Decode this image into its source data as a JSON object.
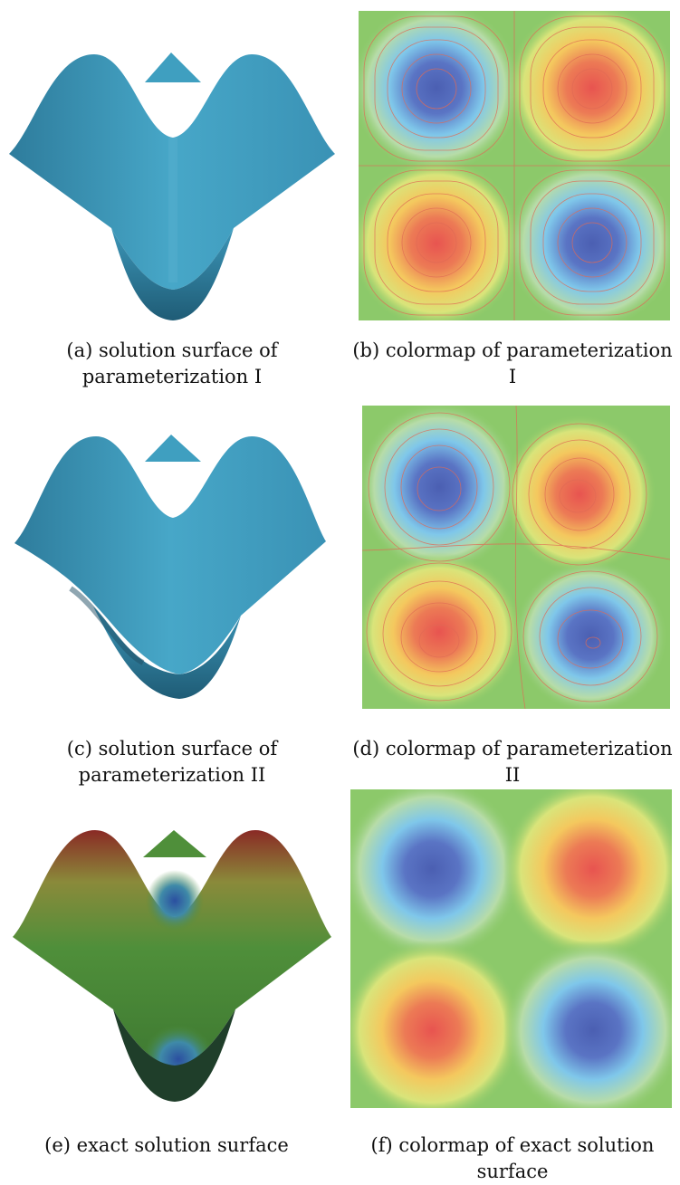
{
  "figure": {
    "panels": [
      {
        "id": "a",
        "caption": "(a) solution surface of parameterization I",
        "kind": "surface-blue"
      },
      {
        "id": "b",
        "caption": "(b) colormap of parameterization I",
        "kind": "contour-map"
      },
      {
        "id": "c",
        "caption": "(c) solution surface of parameterization II",
        "kind": "surface-blue-distorted"
      },
      {
        "id": "d",
        "caption": "(d) colormap of parameterization II",
        "kind": "contour-map-distorted"
      },
      {
        "id": "e",
        "caption": "(e) exact solution surface",
        "kind": "surface-colored"
      },
      {
        "id": "f",
        "caption": "(f) colormap of exact solution surface",
        "kind": "smooth-colormap"
      }
    ],
    "colors": {
      "surface_blue": "#3f9fc0",
      "map_green": "#8cc96a",
      "map_blue": "#4b63b5",
      "map_red": "#e85a55",
      "map_yellow": "#f2e06a",
      "contour_line": "#e06a55"
    }
  }
}
